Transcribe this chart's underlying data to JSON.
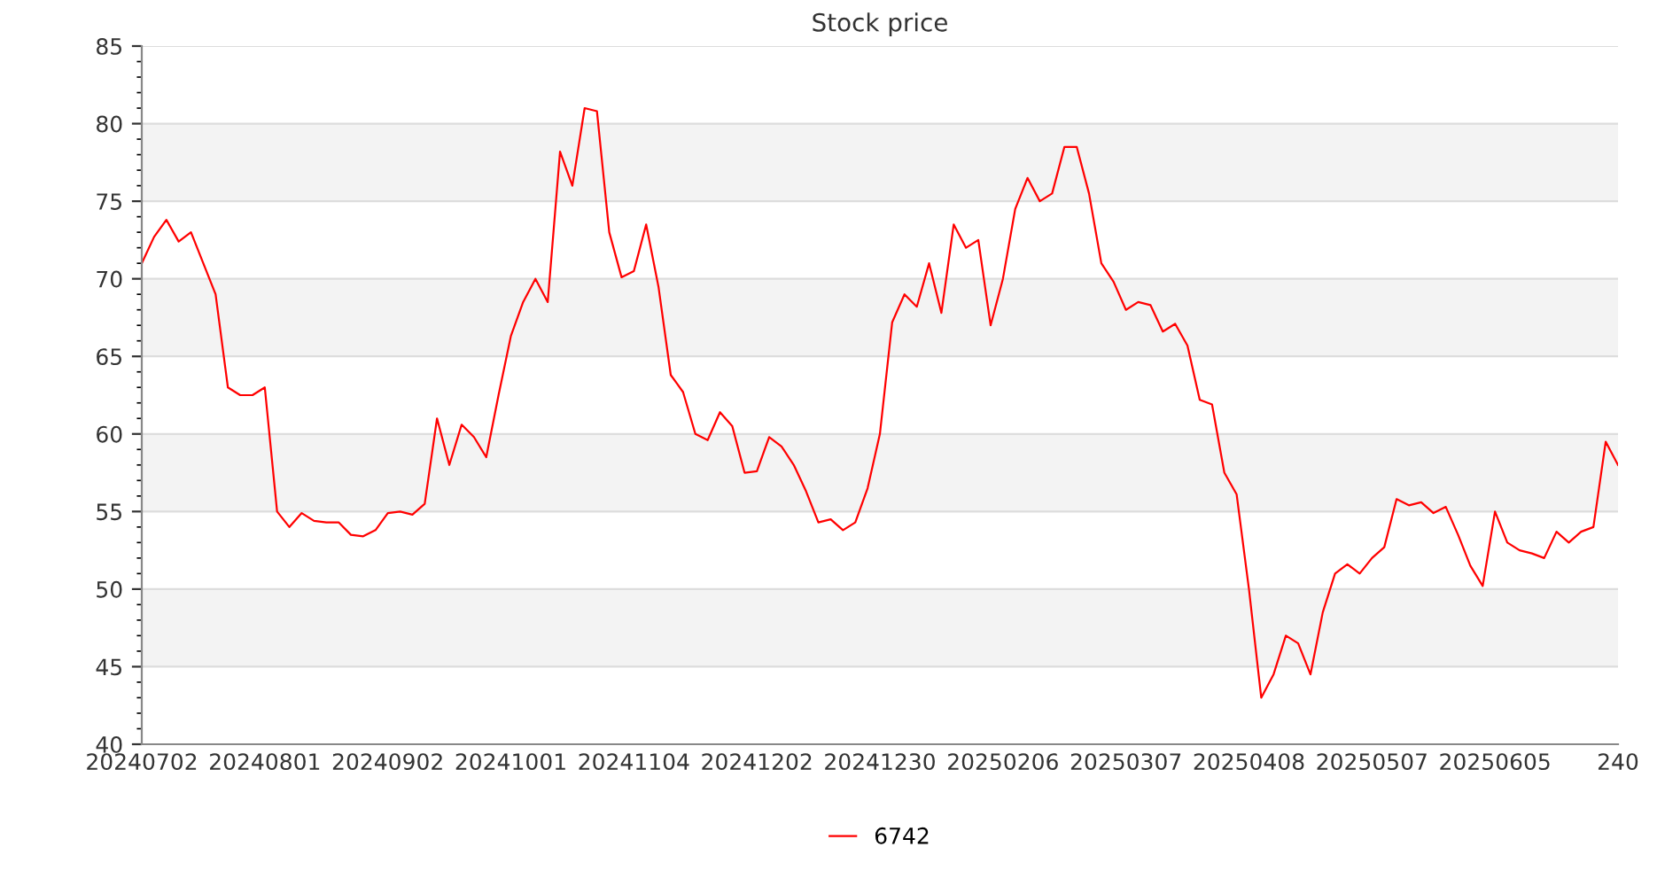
{
  "chart_data": {
    "type": "line",
    "title": "Stock price",
    "categories": [
      "20240702",
      null,
      null,
      null,
      null,
      null,
      null,
      null,
      null,
      null,
      "20240801",
      null,
      null,
      null,
      null,
      null,
      null,
      null,
      null,
      null,
      "20240902",
      null,
      null,
      null,
      null,
      null,
      null,
      null,
      null,
      null,
      "20241001",
      null,
      null,
      null,
      null,
      null,
      null,
      null,
      null,
      null,
      "20241104",
      null,
      null,
      null,
      null,
      null,
      null,
      null,
      null,
      null,
      "20241202",
      null,
      null,
      null,
      null,
      null,
      null,
      null,
      null,
      null,
      "20241230",
      null,
      null,
      null,
      null,
      null,
      null,
      null,
      null,
      null,
      "20250206",
      null,
      null,
      null,
      null,
      null,
      null,
      null,
      null,
      null,
      "20250307",
      null,
      null,
      null,
      null,
      null,
      null,
      null,
      null,
      null,
      "20250408",
      null,
      null,
      null,
      null,
      null,
      null,
      null,
      null,
      null,
      "20250507",
      null,
      null,
      null,
      null,
      null,
      null,
      null,
      null,
      null,
      "20250605",
      null,
      null,
      null,
      null,
      null,
      null,
      null,
      null,
      null,
      "240"
    ],
    "series": [
      {
        "name": "6742",
        "color": "#ff0000",
        "values": [
          71,
          72.7,
          73.8,
          72.4,
          73,
          71,
          69,
          63,
          62.5,
          62.5,
          63,
          55,
          54,
          54.9,
          54.4,
          54.3,
          54.3,
          53.5,
          53.4,
          53.8,
          54.9,
          55,
          54.8,
          55.5,
          61,
          58,
          60.6,
          59.8,
          58.5,
          62.5,
          66.3,
          68.5,
          70,
          68.5,
          78.2,
          76,
          81,
          80.8,
          73,
          70.1,
          70.5,
          73.5,
          69.5,
          63.8,
          62.7,
          60,
          59.6,
          61.4,
          60.5,
          57.5,
          57.6,
          59.8,
          59.2,
          58,
          56.3,
          54.3,
          54.5,
          53.8,
          54.3,
          56.5,
          60,
          67.2,
          69,
          68.2,
          71,
          67.8,
          73.5,
          72,
          72.5,
          67,
          70,
          74.5,
          76.5,
          75,
          75.5,
          78.5,
          78.5,
          75.5,
          71,
          69.8,
          68,
          68.5,
          68.3,
          66.6,
          67.1,
          65.7,
          62.2,
          61.9,
          57.5,
          56.1,
          50,
          43,
          44.5,
          47,
          46.5,
          44.5,
          48.5,
          51,
          51.6,
          51,
          52,
          52.7,
          55.8,
          55.4,
          55.6,
          54.9,
          55.3,
          53.5,
          51.5,
          50.2,
          55,
          53,
          52.5,
          52.3,
          52,
          53.7,
          53,
          53.7,
          54,
          59.5,
          58
        ]
      }
    ],
    "ylim": [
      40,
      85
    ],
    "yticks": [
      40,
      45,
      50,
      55,
      60,
      65,
      70,
      75,
      80,
      85
    ],
    "grid": "y",
    "legend": "bottom",
    "marker": "none",
    "line_style": "solid"
  }
}
